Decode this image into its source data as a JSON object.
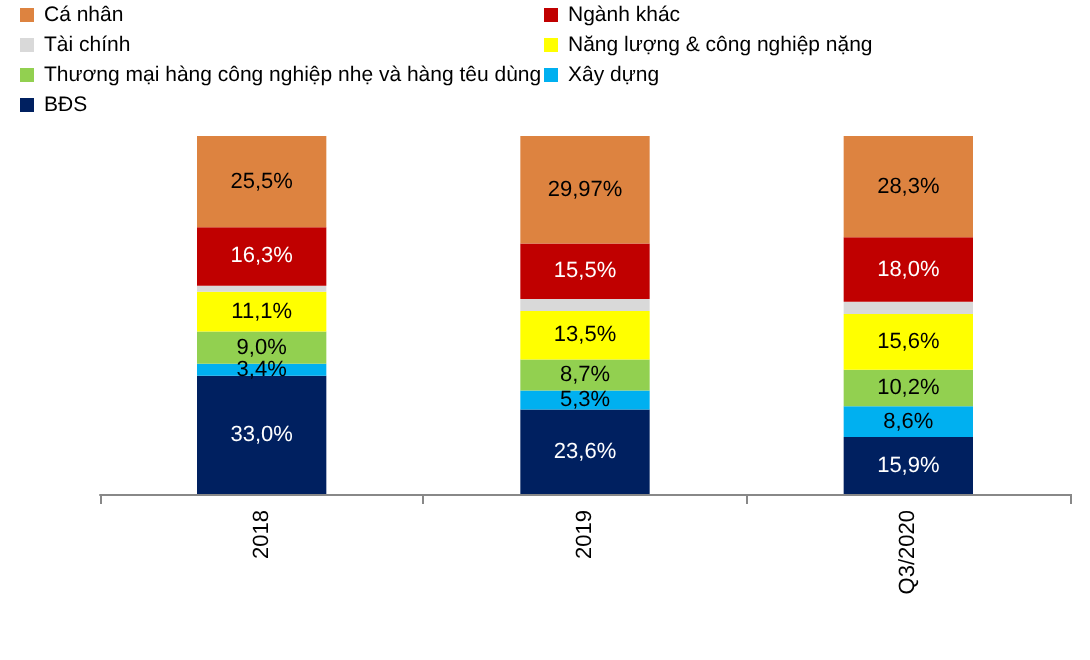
{
  "chart_data": {
    "type": "bar",
    "stacked": true,
    "data_labels": false,
    "legend": "top",
    "categories": [
      "2018",
      "2019",
      "Q3/2020"
    ],
    "series": [
      {
        "name": "BĐS",
        "color": "#002060",
        "values": [
          33.0,
          23.6,
          15.9
        ],
        "value_labels": [
          "33,0%",
          "23,6%",
          "15,9%"
        ]
      },
      {
        "name": "Xây dựng",
        "color": "#00b0f0",
        "values": [
          3.4,
          5.3,
          8.6
        ],
        "value_labels": [
          "3,4%",
          "5,3%",
          "8,6%"
        ]
      },
      {
        "name": "Thương mại hàng công nghiệp nhẹ và hàng têu dùng",
        "color": "#92d050",
        "values": [
          9.0,
          8.7,
          10.2
        ],
        "value_labels": [
          "9,0%",
          "8,7%",
          "10,2%"
        ]
      },
      {
        "name": "Năng lượng & công nghiệp nặng",
        "color": "#ffff00",
        "values": [
          11.1,
          13.5,
          15.6
        ],
        "value_labels": [
          "11,1%",
          "13,5%",
          "15,6%"
        ]
      },
      {
        "name": "Tài chính",
        "color": "#d9d9d9",
        "values": [
          1.7,
          3.4,
          3.4
        ],
        "value_labels": [
          null,
          null,
          null
        ]
      },
      {
        "name": "Ngành khác",
        "color": "#c00000",
        "values": [
          16.3,
          15.5,
          18.0
        ],
        "value_labels": [
          "16,3%",
          "15,5%",
          "18,0%"
        ]
      },
      {
        "name": "Cá nhân",
        "color": "#dd8340",
        "values": [
          25.5,
          29.97,
          28.3
        ],
        "value_labels": [
          "25,5%",
          "29,97%",
          "28,3%"
        ]
      }
    ]
  }
}
